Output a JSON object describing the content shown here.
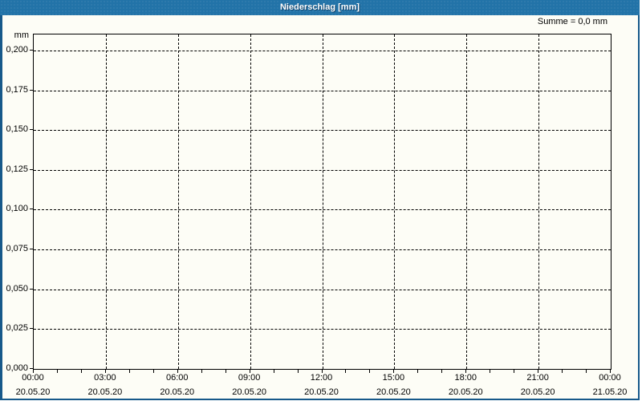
{
  "window": {
    "title": "Niederschlag [mm]"
  },
  "colors": {
    "titlebar": "#2273a8",
    "window_border": "#17598a",
    "background": "#fdfdf6",
    "axis_and_text": "#000000"
  },
  "chart_data": {
    "type": "line",
    "title": "Niederschlag [mm]",
    "ylabel": "mm",
    "xlabel": "",
    "annotation": "Summe = 0,0 mm",
    "grid": "dashed",
    "legend_position": "none",
    "ylim": [
      0,
      0.21
    ],
    "y_ticks": [
      {
        "value": 0.0,
        "label": "0,000"
      },
      {
        "value": 0.025,
        "label": "0,025"
      },
      {
        "value": 0.05,
        "label": "0,050"
      },
      {
        "value": 0.075,
        "label": "0,075"
      },
      {
        "value": 0.1,
        "label": "0,100"
      },
      {
        "value": 0.125,
        "label": "0,125"
      },
      {
        "value": 0.15,
        "label": "0,150"
      },
      {
        "value": 0.175,
        "label": "0,175"
      },
      {
        "value": 0.2,
        "label": "0,200"
      }
    ],
    "x_ticks": [
      {
        "time": "00:00",
        "date": "20.05.20"
      },
      {
        "time": "03:00",
        "date": "20.05.20"
      },
      {
        "time": "06:00",
        "date": "20.05.20"
      },
      {
        "time": "09:00",
        "date": "20.05.20"
      },
      {
        "time": "12:00",
        "date": "20.05.20"
      },
      {
        "time": "15:00",
        "date": "20.05.20"
      },
      {
        "time": "18:00",
        "date": "20.05.20"
      },
      {
        "time": "21:00",
        "date": "20.05.20"
      },
      {
        "time": "00:00",
        "date": "21.05.20"
      }
    ],
    "minor_x_tick_count": 24,
    "series": [
      {
        "name": "Niederschlag",
        "values": []
      }
    ],
    "sum_value_mm": "0,0"
  }
}
